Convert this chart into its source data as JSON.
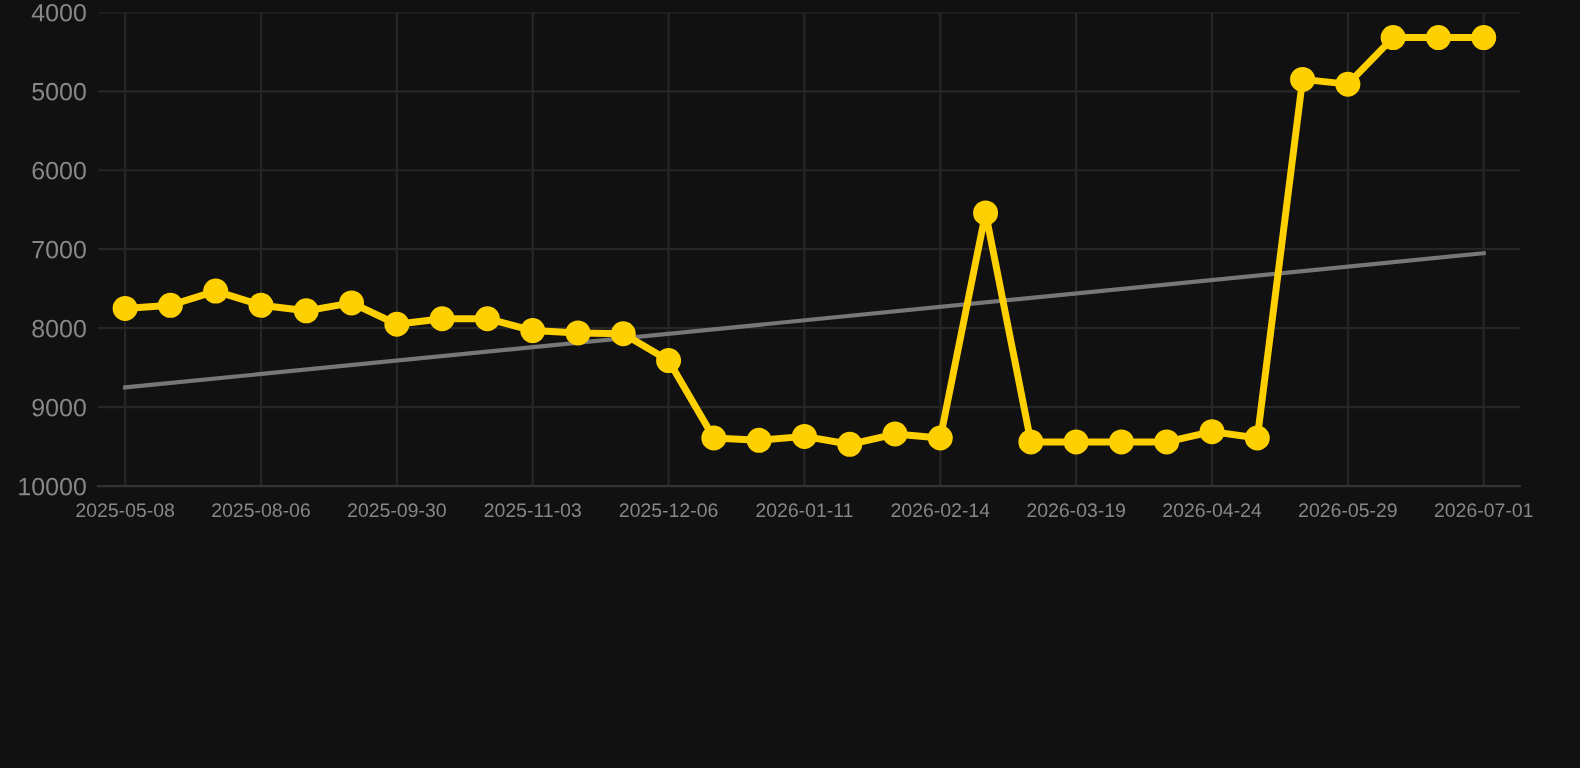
{
  "chart_data": {
    "type": "line",
    "categories": [
      "2025-05-08",
      null,
      null,
      "2025-08-06",
      null,
      null,
      "2025-09-30",
      null,
      null,
      "2025-11-03",
      null,
      null,
      "2025-12-06",
      null,
      null,
      "2026-01-11",
      null,
      null,
      "2026-02-14",
      null,
      null,
      "2026-03-19",
      null,
      null,
      "2026-04-24",
      null,
      null,
      "2026-05-29",
      null,
      null,
      "2026-07-01"
    ],
    "series": [
      {
        "color": "#ffd000",
        "marker": "circle",
        "values": [
          7750,
          7710,
          7530,
          7710,
          7780,
          7680,
          7950,
          7880,
          7880,
          8030,
          8060,
          8070,
          8410,
          9390,
          9420,
          9370,
          9470,
          9340,
          9390,
          6540,
          9440,
          9440,
          9440,
          9440,
          9310,
          9390,
          4850,
          4910,
          4320,
          4320,
          4320
        ]
      },
      {
        "color": "#777777",
        "marker": "none",
        "values": [
          8750,
          null,
          null,
          null,
          null,
          null,
          null,
          null,
          null,
          null,
          null,
          null,
          null,
          null,
          null,
          null,
          null,
          null,
          null,
          null,
          null,
          null,
          null,
          null,
          null,
          null,
          null,
          null,
          null,
          null,
          7050
        ]
      }
    ],
    "ylim": [
      10000,
      4000
    ],
    "yticks": [
      4000,
      5000,
      6000,
      7000,
      8000,
      9000,
      10000
    ],
    "grid": true,
    "line_style": "solid"
  }
}
